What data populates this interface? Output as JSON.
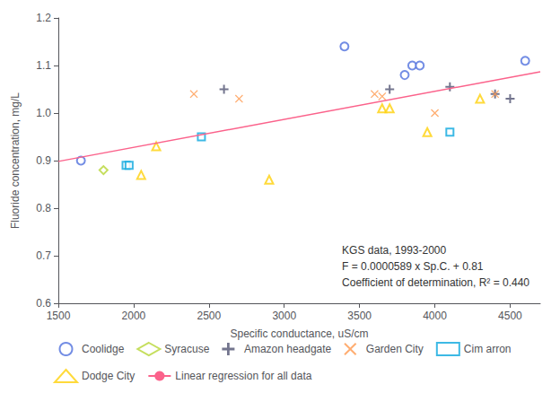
{
  "chart_data": {
    "type": "scatter",
    "xlabel": "Specific conductance, uS/cm",
    "ylabel": "Fluoride concentration, mg/L",
    "xlim": [
      1500,
      4700
    ],
    "ylim": [
      0.6,
      1.2
    ],
    "xticks": [
      1500,
      2000,
      2500,
      3000,
      3500,
      4000,
      4500
    ],
    "yticks": [
      0.6,
      0.7,
      0.8,
      0.9,
      {
        "value": 1.0,
        "label": "1.0"
      },
      1.1,
      1.2
    ],
    "grid": false,
    "legend": "lower left",
    "annotations": [
      "KGS data, 1993-2000",
      "F = 0.0000589 x Sp.C. + 0.81",
      "Coefficient of determination, R² = 0.440"
    ],
    "series": [
      {
        "name": "Coolidge",
        "type": "scatter",
        "marker": "circle",
        "x": [
          1650,
          3400,
          3800,
          3850,
          3900,
          4600
        ],
        "values": [
          0.9,
          1.14,
          1.08,
          1.1,
          1.1,
          1.11
        ]
      },
      {
        "name": "Syracuse",
        "type": "scatter",
        "marker": "diamond",
        "x": [
          1800
        ],
        "values": [
          0.88
        ]
      },
      {
        "name": "Amazon headgate",
        "type": "scatter",
        "marker": "plus",
        "x": [
          2600,
          3700,
          4100,
          4400,
          4500
        ],
        "values": [
          1.05,
          1.05,
          1.055,
          1.04,
          1.03
        ]
      },
      {
        "name": "Garden City",
        "type": "scatter",
        "marker": "x",
        "x": [
          2400,
          2700,
          3600,
          3650,
          4000,
          4400
        ],
        "values": [
          1.04,
          1.03,
          1.04,
          1.035,
          1.0,
          1.04
        ]
      },
      {
        "name": "Cim arron",
        "type": "scatter",
        "marker": "square",
        "x": [
          1950,
          1970,
          2450,
          4100
        ],
        "values": [
          0.89,
          0.89,
          0.95,
          0.96
        ]
      },
      {
        "name": "Dodge City",
        "type": "scatter",
        "marker": "triangle",
        "x": [
          2050,
          2150,
          2900,
          3650,
          3700,
          3950,
          4300
        ],
        "values": [
          0.87,
          0.93,
          0.86,
          1.01,
          1.01,
          0.96,
          1.03
        ]
      },
      {
        "name": "Linear regression for all data",
        "type": "line",
        "line_style": "solid",
        "x": [
          1500,
          4700
        ],
        "values": [
          0.89835,
          1.08683
        ]
      }
    ]
  }
}
